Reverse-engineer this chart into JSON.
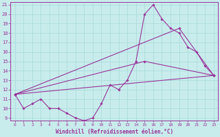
{
  "xlabel": "Windchill (Refroidissement éolien,°C)",
  "xlim": [
    -0.5,
    23.5
  ],
  "ylim": [
    8.7,
    21.3
  ],
  "yticks": [
    9,
    10,
    11,
    12,
    13,
    14,
    15,
    16,
    17,
    18,
    19,
    20,
    21
  ],
  "xticks": [
    0,
    1,
    2,
    3,
    4,
    5,
    6,
    7,
    8,
    9,
    10,
    11,
    12,
    13,
    14,
    15,
    16,
    17,
    18,
    19,
    20,
    21,
    22,
    23
  ],
  "bg_color": "#c8ecec",
  "grid_color": "#a8d8d8",
  "line_color": "#993399",
  "lines": [
    {
      "x": [
        0,
        1,
        2,
        3,
        4,
        5,
        6,
        7,
        8,
        9,
        10,
        11,
        12,
        13,
        14,
        15,
        16,
        17,
        18,
        19,
        20,
        21,
        22,
        23
      ],
      "y": [
        11.5,
        10.0,
        10.5,
        11.0,
        10.0,
        10.0,
        9.5,
        9.0,
        8.7,
        9.0,
        10.5,
        12.5,
        12.0,
        13.0,
        15.0,
        20.0,
        21.0,
        19.5,
        18.5,
        18.0,
        16.5,
        16.0,
        14.5,
        13.5
      ]
    },
    {
      "x": [
        0,
        23
      ],
      "y": [
        11.5,
        13.5
      ]
    },
    {
      "x": [
        0,
        15,
        23
      ],
      "y": [
        11.5,
        15.0,
        13.5
      ]
    },
    {
      "x": [
        0,
        19,
        23
      ],
      "y": [
        11.5,
        18.5,
        13.5
      ]
    }
  ]
}
